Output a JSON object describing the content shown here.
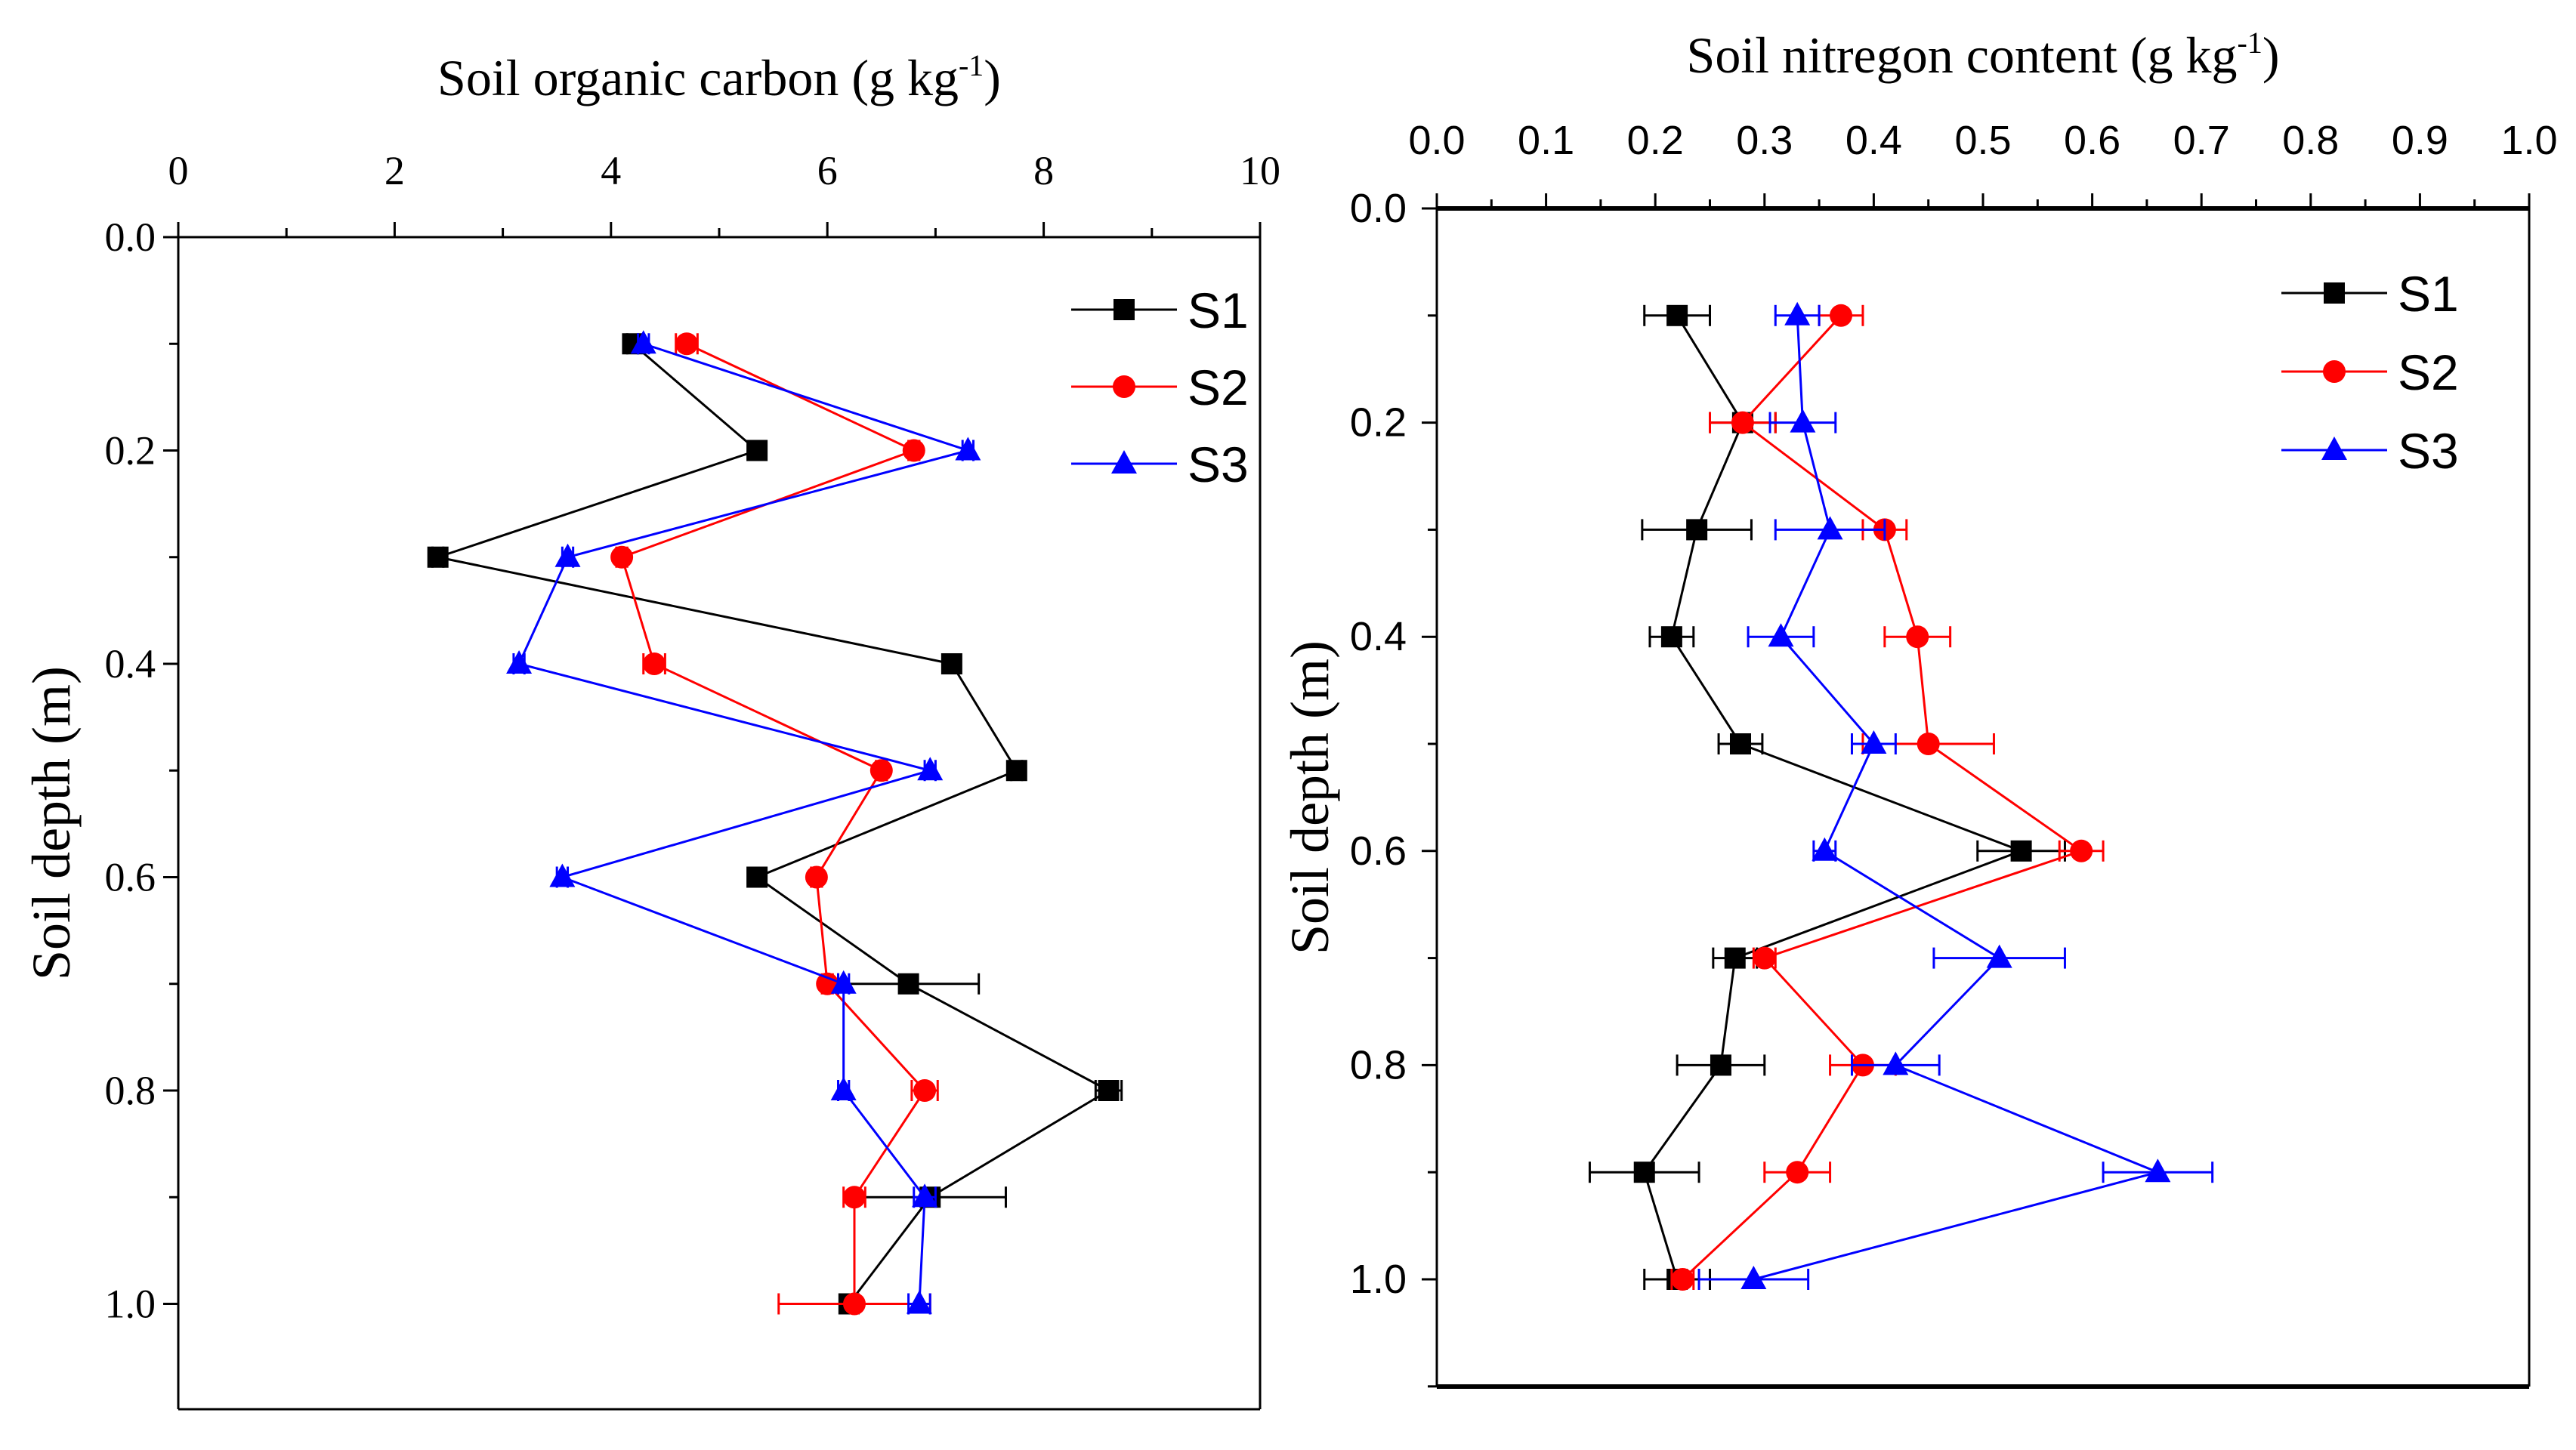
{
  "chart_data": [
    {
      "type": "line",
      "title": "",
      "xlabel": "Soil organic carbon (g kg",
      "xlabel_sup": "-1",
      "xlabel_close": ")",
      "ylabel": "Soil depth (m)",
      "xlim": [
        0,
        10
      ],
      "ylim": [
        0,
        1.1
      ],
      "x_ticks": [
        "0",
        "2",
        "4",
        "6",
        "8",
        "10"
      ],
      "y_ticks": [
        "0.0",
        "0.2",
        "0.4",
        "0.6",
        "0.8",
        "1.0"
      ],
      "depths": [
        0.1,
        0.2,
        0.3,
        0.4,
        0.5,
        0.6,
        0.7,
        0.8,
        0.9,
        1.0
      ],
      "series": [
        {
          "name": "S1",
          "color": "#000000",
          "marker": "square",
          "values": [
            4.2,
            5.35,
            2.4,
            7.15,
            7.75,
            5.35,
            6.75,
            8.6,
            6.95,
            6.2
          ],
          "errors": [
            0.05,
            0.05,
            0.05,
            0.05,
            0.05,
            0.05,
            0.65,
            0.12,
            0.7,
            0.05
          ]
        },
        {
          "name": "S2",
          "color": "#ff0000",
          "marker": "circle",
          "values": [
            4.7,
            6.8,
            4.1,
            4.4,
            6.5,
            5.9,
            6.0,
            6.9,
            6.25,
            6.25
          ],
          "errors": [
            0.1,
            0.05,
            0.05,
            0.1,
            0.05,
            0.05,
            0.05,
            0.12,
            0.1,
            0.7
          ]
        },
        {
          "name": "S3",
          "color": "#0000ff",
          "marker": "triangle",
          "values": [
            4.3,
            7.3,
            3.6,
            3.15,
            6.95,
            3.55,
            6.15,
            6.15,
            6.9,
            6.85
          ],
          "errors": [
            0.05,
            0.05,
            0.05,
            0.05,
            0.05,
            0.05,
            0.05,
            0.05,
            0.1,
            0.1
          ]
        }
      ]
    },
    {
      "type": "line",
      "title": "",
      "xlabel": "Soil nitregon content (g kg",
      "xlabel_sup": "-1",
      "xlabel_close": ")",
      "ylabel": "Soil depth (m)",
      "xlim": [
        0,
        1.0
      ],
      "ylim": [
        0,
        1.1
      ],
      "x_ticks": [
        "0.0",
        "0.1",
        "0.2",
        "0.3",
        "0.4",
        "0.5",
        "0.6",
        "0.7",
        "0.8",
        "0.9",
        "1.0"
      ],
      "y_ticks": [
        "0.0",
        "0.2",
        "0.4",
        "0.6",
        "0.8",
        "1.0"
      ],
      "depths": [
        0.1,
        0.2,
        0.3,
        0.4,
        0.5,
        0.6,
        0.7,
        0.8,
        0.9,
        1.0
      ],
      "series": [
        {
          "name": "S1",
          "color": "#000000",
          "marker": "square",
          "values": [
            0.22,
            0.28,
            0.238,
            0.215,
            0.278,
            0.535,
            0.273,
            0.26,
            0.19,
            0.22
          ],
          "errors": [
            0.03,
            0.03,
            0.05,
            0.02,
            0.02,
            0.04,
            0.02,
            0.04,
            0.05,
            0.03
          ]
        },
        {
          "name": "S2",
          "color": "#ff0000",
          "marker": "circle",
          "values": [
            0.37,
            0.28,
            0.41,
            0.44,
            0.45,
            0.59,
            0.3,
            0.39,
            0.33,
            0.225
          ],
          "errors": [
            0.02,
            0.03,
            0.02,
            0.03,
            0.06,
            0.02,
            0.01,
            0.03,
            0.03,
            0.01
          ]
        },
        {
          "name": "S3",
          "color": "#0000ff",
          "marker": "triangle",
          "values": [
            0.33,
            0.335,
            0.36,
            0.315,
            0.4,
            0.355,
            0.515,
            0.42,
            0.66,
            0.29
          ],
          "errors": [
            0.02,
            0.03,
            0.05,
            0.03,
            0.02,
            0.01,
            0.06,
            0.04,
            0.05,
            0.05
          ]
        }
      ]
    }
  ]
}
